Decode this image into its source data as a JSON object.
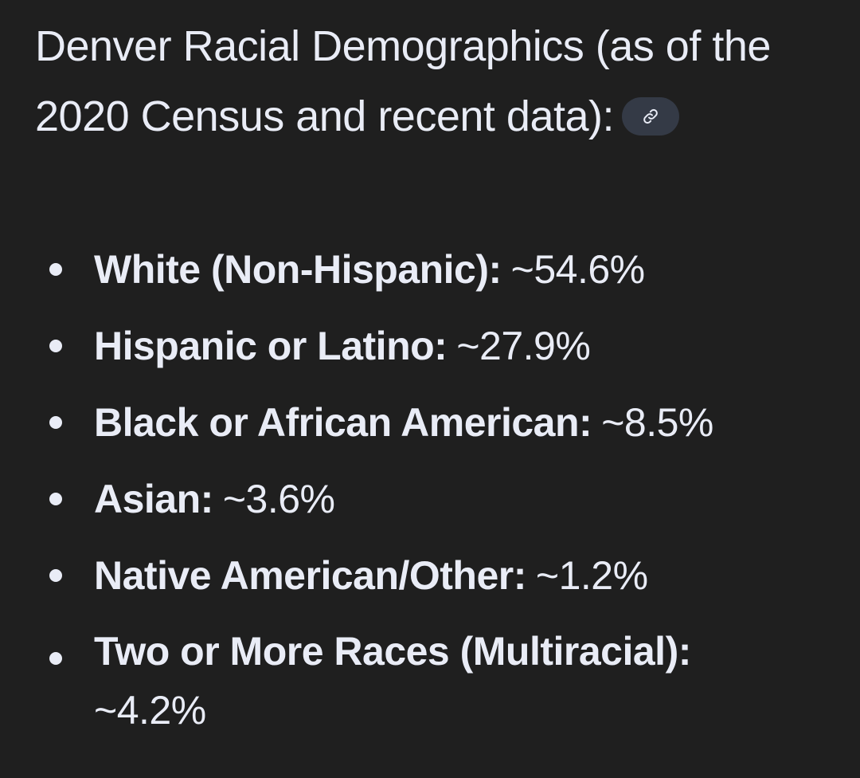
{
  "heading": {
    "title": "Denver Racial Demographics (as of the 2020 Census and recent data):",
    "link_icon": "link-icon"
  },
  "demographics": [
    {
      "label": "White (Non-Hispanic):",
      "value": "~54.6%"
    },
    {
      "label": "Hispanic or Latino:",
      "value": "~27.9%"
    },
    {
      "label": "Black or African American:",
      "value": "~8.5%"
    },
    {
      "label": "Asian:",
      "value": "~3.6%"
    },
    {
      "label": "Native American/Other:",
      "value": "~1.2%"
    },
    {
      "label": "Two or More Races (Multiracial):",
      "value": "~4.2%"
    }
  ],
  "colors": {
    "background": "#1f1f1f",
    "text": "#e9ecf6",
    "chip": "#343a46"
  }
}
